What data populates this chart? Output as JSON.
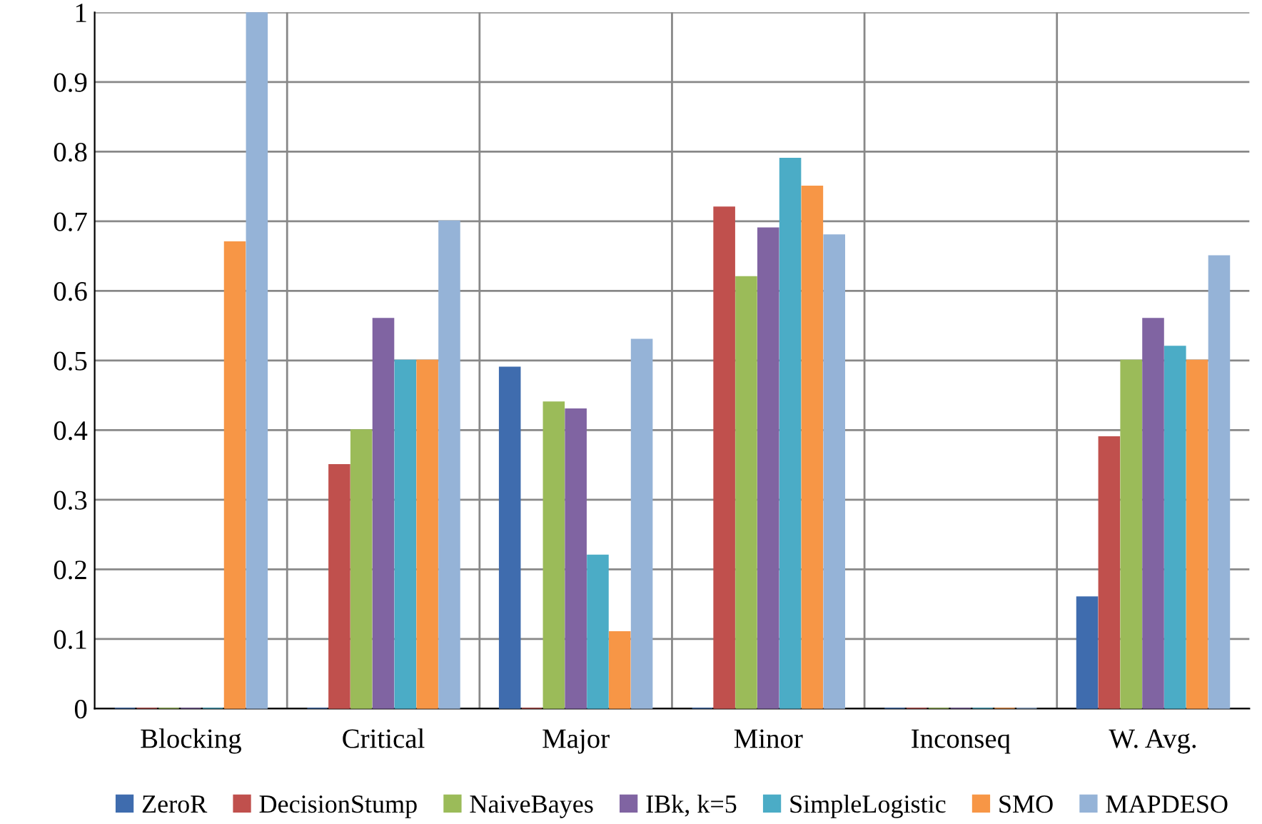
{
  "chart_data": {
    "type": "bar",
    "categories": [
      "Blocking",
      "Critical",
      "Major",
      "Minor",
      "Inconseq",
      "W. Avg."
    ],
    "series": [
      {
        "name": "ZeroR",
        "color": "#3f6cae",
        "values": [
          0,
          0,
          0.49,
          0,
          0,
          0.16
        ]
      },
      {
        "name": "DecisionStump",
        "color": "#c0504d",
        "values": [
          0,
          0.35,
          0,
          0.72,
          0,
          0.39
        ]
      },
      {
        "name": "NaiveBayes",
        "color": "#9bbb59",
        "values": [
          0,
          0.4,
          0.44,
          0.62,
          0,
          0.5
        ]
      },
      {
        "name": "IBk, k=5",
        "color": "#8064a2",
        "values": [
          0,
          0.56,
          0.43,
          0.69,
          0,
          0.56
        ]
      },
      {
        "name": "SimpleLogistic",
        "color": "#4bacc6",
        "values": [
          0,
          0.5,
          0.22,
          0.79,
          0,
          0.52
        ]
      },
      {
        "name": "SMO",
        "color": "#f79646",
        "values": [
          0.67,
          0.5,
          0.11,
          0.75,
          0,
          0.5
        ]
      },
      {
        "name": "MAPDESO",
        "color": "#95b3d7",
        "values": [
          1.0,
          0.7,
          0.53,
          0.68,
          0,
          0.65
        ]
      }
    ],
    "ylim": [
      0,
      1
    ],
    "yticks": [
      0,
      0.1,
      0.2,
      0.3,
      0.4,
      0.5,
      0.6,
      0.7,
      0.8,
      0.9,
      1
    ],
    "grid": true,
    "legend": "bottom"
  }
}
